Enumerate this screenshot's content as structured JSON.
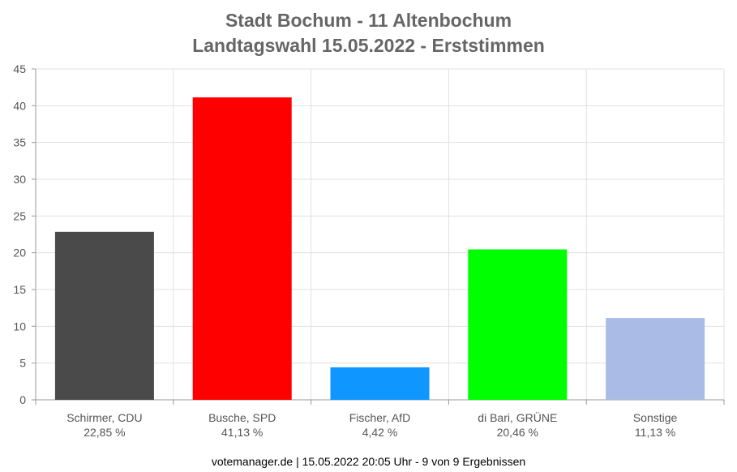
{
  "chart_data": {
    "type": "bar",
    "title": "Stadt Bochum - 11 Altenbochum",
    "subtitle": "Landtagswahl 15.05.2022  - Erststimmen",
    "categories": [
      "Schirmer, CDU",
      "Busche, SPD",
      "Fischer, AfD",
      "di Bari, GRÜNE",
      "Sonstige"
    ],
    "value_labels": [
      "22,85 %",
      "41,13 %",
      "4,42 %",
      "20,46 %",
      "11,13 %"
    ],
    "values": [
      22.85,
      41.13,
      4.42,
      20.46,
      11.13
    ],
    "colors": [
      "#4a4a4a",
      "#ff0000",
      "#0f96ff",
      "#00ff00",
      "#aabce6"
    ],
    "ylim": [
      0,
      45
    ],
    "yticks": [
      0,
      5,
      10,
      15,
      20,
      25,
      30,
      35,
      40,
      45
    ],
    "grid": true
  },
  "footer": "votemanager.de | 15.05.2022 20:05 Uhr - 9 von 9 Ergebnissen"
}
